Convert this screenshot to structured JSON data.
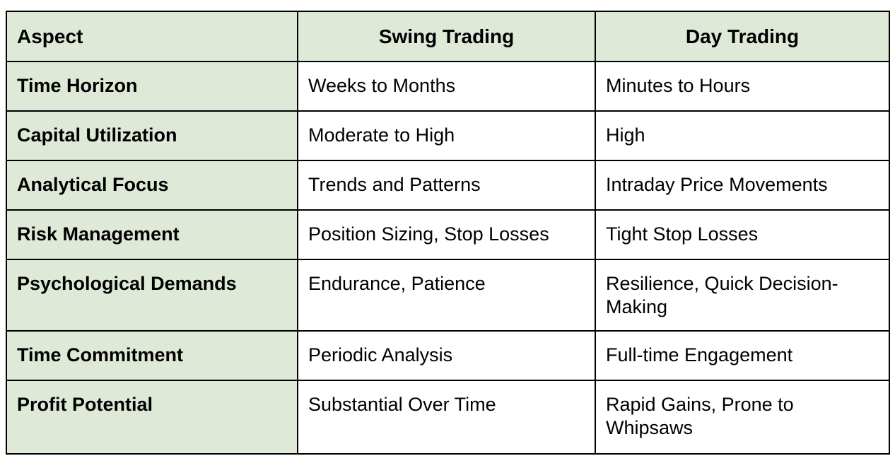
{
  "table": {
    "headers": [
      "Aspect",
      "Swing Trading",
      "Day Trading"
    ],
    "rows": [
      {
        "aspect": "Time Horizon",
        "swing": "Weeks to Months",
        "day": "Minutes to Hours"
      },
      {
        "aspect": "Capital Utilization",
        "swing": "Moderate to High",
        "day": "High"
      },
      {
        "aspect": "Analytical Focus",
        "swing": "Trends and Patterns",
        "day": "Intraday Price Movements"
      },
      {
        "aspect": "Risk Management",
        "swing": "Position Sizing, Stop Losses",
        "day": "Tight Stop Losses"
      },
      {
        "aspect": "Psychological Demands",
        "swing": "Endurance, Patience",
        "day": "Resilience, Quick Decision-Making"
      },
      {
        "aspect": "Time Commitment",
        "swing": "Periodic Analysis",
        "day": "Full-time Engagement"
      },
      {
        "aspect": "Profit Potential",
        "swing": "Substantial Over Time",
        "day": "Rapid Gains, Prone to Whipsaws"
      }
    ]
  },
  "colors": {
    "header_fill": "#dfe9d8",
    "border": "#000000",
    "cell_fill": "#ffffff"
  }
}
